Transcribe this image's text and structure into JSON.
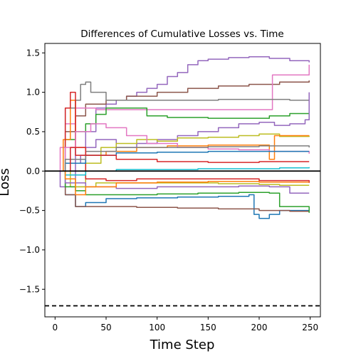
{
  "chart_data": {
    "type": "line",
    "title": "Differences of Cumulative Losses vs. Time",
    "xlabel": "Time Step",
    "ylabel": "Loss",
    "xlim": [
      -10,
      260
    ],
    "ylim": [
      -1.85,
      1.62
    ],
    "xticks": [
      0,
      50,
      100,
      150,
      200,
      250
    ],
    "yticks": [
      -1.5,
      -1.0,
      -0.5,
      0.0,
      0.5,
      1.0,
      1.5
    ],
    "xtick_labels": [
      "0",
      "50",
      "100",
      "150",
      "200",
      "250"
    ],
    "ytick_labels": [
      "−1.5",
      "−1.0",
      "−0.5",
      "0.0",
      "0.5",
      "1.0",
      "1.5"
    ],
    "grid": false,
    "reference_lines": [
      {
        "y": 0.0,
        "style": "solid",
        "color": "#000000"
      },
      {
        "y": -1.71,
        "style": "dashed",
        "color": "#000000"
      }
    ],
    "series": [
      {
        "color": "#9467bd",
        "points": [
          [
            0,
            0.0
          ],
          [
            5,
            -0.2
          ],
          [
            10,
            0.1
          ],
          [
            15,
            0.3
          ],
          [
            20,
            0.1
          ],
          [
            25,
            0.2
          ],
          [
            30,
            0.5
          ],
          [
            40,
            0.8
          ],
          [
            50,
            0.85
          ],
          [
            60,
            0.9
          ],
          [
            70,
            0.95
          ],
          [
            80,
            1.0
          ],
          [
            90,
            1.05
          ],
          [
            100,
            1.1
          ],
          [
            110,
            1.2
          ],
          [
            120,
            1.25
          ],
          [
            130,
            1.35
          ],
          [
            140,
            1.4
          ],
          [
            150,
            1.42
          ],
          [
            170,
            1.44
          ],
          [
            190,
            1.45
          ],
          [
            210,
            1.43
          ],
          [
            230,
            1.4
          ],
          [
            249,
            1.38
          ]
        ]
      },
      {
        "color": "#8c564b",
        "points": [
          [
            0,
            0.0
          ],
          [
            10,
            0.5
          ],
          [
            20,
            0.7
          ],
          [
            30,
            0.85
          ],
          [
            50,
            0.9
          ],
          [
            70,
            0.95
          ],
          [
            100,
            1.0
          ],
          [
            130,
            1.05
          ],
          [
            160,
            1.08
          ],
          [
            190,
            1.1
          ],
          [
            220,
            1.13
          ],
          [
            249,
            1.15
          ]
        ]
      },
      {
        "color": "#e377c2",
        "points": [
          [
            0,
            0.0
          ],
          [
            5,
            0.3
          ],
          [
            10,
            0.6
          ],
          [
            20,
            0.8
          ],
          [
            40,
            0.78
          ],
          [
            80,
            0.78
          ],
          [
            120,
            0.78
          ],
          [
            160,
            0.78
          ],
          [
            195,
            0.78
          ],
          [
            212,
            0.78
          ],
          [
            213,
            1.22
          ],
          [
            240,
            1.22
          ],
          [
            249,
            1.35
          ]
        ]
      },
      {
        "color": "#7f7f7f",
        "points": [
          [
            0,
            0.0
          ],
          [
            10,
            0.8
          ],
          [
            20,
            0.9
          ],
          [
            25,
            1.1
          ],
          [
            30,
            1.13
          ],
          [
            35,
            1.0
          ],
          [
            50,
            0.9
          ],
          [
            80,
            0.9
          ],
          [
            120,
            0.9
          ],
          [
            160,
            0.91
          ],
          [
            200,
            0.91
          ],
          [
            230,
            0.9
          ],
          [
            249,
            0.9
          ]
        ]
      },
      {
        "color": "#2ca02c",
        "points": [
          [
            0,
            0.0
          ],
          [
            10,
            0.4
          ],
          [
            20,
            0.5
          ],
          [
            30,
            0.6
          ],
          [
            40,
            0.72
          ],
          [
            50,
            0.8
          ],
          [
            70,
            0.8
          ],
          [
            90,
            0.7
          ],
          [
            110,
            0.68
          ],
          [
            150,
            0.67
          ],
          [
            190,
            0.67
          ],
          [
            210,
            0.7
          ],
          [
            230,
            0.73
          ],
          [
            249,
            0.73
          ]
        ]
      },
      {
        "color": "#9467bd",
        "points": [
          [
            0,
            0.0
          ],
          [
            10,
            -0.1
          ],
          [
            20,
            0.1
          ],
          [
            30,
            0.3
          ],
          [
            40,
            0.4
          ],
          [
            60,
            0.3
          ],
          [
            80,
            0.35
          ],
          [
            100,
            0.4
          ],
          [
            120,
            0.45
          ],
          [
            140,
            0.5
          ],
          [
            160,
            0.55
          ],
          [
            180,
            0.6
          ],
          [
            200,
            0.62
          ],
          [
            215,
            0.58
          ],
          [
            230,
            0.6
          ],
          [
            245,
            0.65
          ],
          [
            249,
            1.0
          ]
        ]
      },
      {
        "color": "#bcbd22",
        "points": [
          [
            0,
            0.0
          ],
          [
            15,
            -0.2
          ],
          [
            30,
            0.1
          ],
          [
            45,
            0.3
          ],
          [
            60,
            0.35
          ],
          [
            80,
            0.4
          ],
          [
            100,
            0.38
          ],
          [
            120,
            0.42
          ],
          [
            150,
            0.43
          ],
          [
            180,
            0.45
          ],
          [
            200,
            0.47
          ],
          [
            220,
            0.44
          ],
          [
            249,
            0.45
          ]
        ]
      },
      {
        "color": "#ff7f0e",
        "points": [
          [
            0,
            0.0
          ],
          [
            8,
            0.4
          ],
          [
            15,
            0.9
          ],
          [
            20,
            0.3
          ],
          [
            30,
            0.2
          ],
          [
            50,
            0.25
          ],
          [
            80,
            0.3
          ],
          [
            110,
            0.32
          ],
          [
            150,
            0.33
          ],
          [
            200,
            0.33
          ],
          [
            210,
            0.15
          ],
          [
            215,
            0.45
          ],
          [
            249,
            0.45
          ]
        ]
      },
      {
        "color": "#1f77b4",
        "points": [
          [
            0,
            0.0
          ],
          [
            10,
            -0.3
          ],
          [
            20,
            -0.45
          ],
          [
            30,
            -0.4
          ],
          [
            50,
            -0.35
          ],
          [
            80,
            -0.34
          ],
          [
            120,
            -0.33
          ],
          [
            160,
            -0.32
          ],
          [
            190,
            -0.3
          ],
          [
            195,
            -0.55
          ],
          [
            200,
            -0.6
          ],
          [
            210,
            -0.55
          ],
          [
            220,
            -0.5
          ],
          [
            249,
            -0.5
          ]
        ]
      },
      {
        "color": "#8c564b",
        "points": [
          [
            0,
            0.0
          ],
          [
            10,
            -0.3
          ],
          [
            20,
            -0.45
          ],
          [
            40,
            -0.45
          ],
          [
            80,
            -0.46
          ],
          [
            120,
            -0.47
          ],
          [
            160,
            -0.48
          ],
          [
            200,
            -0.5
          ],
          [
            230,
            -0.51
          ],
          [
            249,
            -0.52
          ]
        ]
      },
      {
        "color": "#2ca02c",
        "points": [
          [
            0,
            0.0
          ],
          [
            10,
            -0.2
          ],
          [
            20,
            -0.25
          ],
          [
            30,
            -0.3
          ],
          [
            60,
            -0.3
          ],
          [
            100,
            -0.29
          ],
          [
            140,
            -0.28
          ],
          [
            180,
            -0.27
          ],
          [
            210,
            -0.28
          ],
          [
            220,
            -0.45
          ],
          [
            249,
            -0.53
          ]
        ]
      },
      {
        "color": "#9467bd",
        "points": [
          [
            0,
            0.0
          ],
          [
            10,
            -0.15
          ],
          [
            30,
            -0.2
          ],
          [
            60,
            -0.22
          ],
          [
            100,
            -0.2
          ],
          [
            140,
            -0.2
          ],
          [
            180,
            -0.19
          ],
          [
            210,
            -0.2
          ],
          [
            230,
            -0.28
          ],
          [
            249,
            -0.28
          ]
        ]
      },
      {
        "color": "#bcbd22",
        "points": [
          [
            0,
            0.0
          ],
          [
            10,
            -0.1
          ],
          [
            20,
            -0.2
          ],
          [
            40,
            -0.15
          ],
          [
            80,
            -0.15
          ],
          [
            120,
            -0.15
          ],
          [
            160,
            -0.16
          ],
          [
            200,
            -0.17
          ],
          [
            220,
            -0.18
          ],
          [
            249,
            -0.18
          ]
        ]
      },
      {
        "color": "#d62728",
        "points": [
          [
            0,
            0.0
          ],
          [
            10,
            0.8
          ],
          [
            15,
            1.0
          ],
          [
            20,
            0.2
          ],
          [
            30,
            -0.1
          ],
          [
            50,
            -0.12
          ],
          [
            80,
            -0.1
          ],
          [
            120,
            -0.1
          ],
          [
            160,
            -0.1
          ],
          [
            200,
            -0.12
          ],
          [
            230,
            -0.12
          ],
          [
            249,
            -0.15
          ]
        ]
      },
      {
        "color": "#17becf",
        "points": [
          [
            0,
            0.0
          ],
          [
            10,
            -0.05
          ],
          [
            30,
            0.0
          ],
          [
            60,
            0.02
          ],
          [
            100,
            0.02
          ],
          [
            140,
            0.03
          ],
          [
            180,
            0.03
          ],
          [
            220,
            0.04
          ],
          [
            249,
            0.05
          ]
        ]
      },
      {
        "color": "#e377c2",
        "points": [
          [
            0,
            0.0
          ],
          [
            10,
            0.3
          ],
          [
            20,
            0.5
          ],
          [
            35,
            0.6
          ],
          [
            50,
            0.55
          ],
          [
            70,
            0.45
          ],
          [
            90,
            0.35
          ],
          [
            120,
            0.3
          ],
          [
            150,
            0.28
          ],
          [
            180,
            0.27
          ],
          [
            210,
            0.25
          ],
          [
            249,
            0.22
          ]
        ]
      },
      {
        "color": "#1f77b4",
        "points": [
          [
            0,
            0.0
          ],
          [
            10,
            0.1
          ],
          [
            30,
            0.2
          ],
          [
            60,
            0.23
          ],
          [
            100,
            0.24
          ],
          [
            150,
            0.25
          ],
          [
            200,
            0.25
          ],
          [
            249,
            0.25
          ]
        ]
      },
      {
        "color": "#ff7f0e",
        "points": [
          [
            0,
            0.0
          ],
          [
            10,
            -0.1
          ],
          [
            20,
            -0.3
          ],
          [
            30,
            -0.2
          ],
          [
            60,
            -0.15
          ],
          [
            100,
            -0.14
          ],
          [
            150,
            -0.13
          ],
          [
            200,
            -0.14
          ],
          [
            249,
            -0.14
          ]
        ]
      },
      {
        "color": "#7f7f7f",
        "points": [
          [
            0,
            0.0
          ],
          [
            10,
            0.15
          ],
          [
            30,
            0.25
          ],
          [
            60,
            0.3
          ],
          [
            100,
            0.3
          ],
          [
            150,
            0.31
          ],
          [
            200,
            0.32
          ],
          [
            249,
            0.3
          ]
        ]
      },
      {
        "color": "#d62728",
        "points": [
          [
            0,
            0.0
          ],
          [
            15,
            0.3
          ],
          [
            30,
            0.2
          ],
          [
            60,
            0.15
          ],
          [
            100,
            0.12
          ],
          [
            150,
            0.11
          ],
          [
            200,
            0.12
          ],
          [
            249,
            0.12
          ]
        ]
      }
    ]
  }
}
